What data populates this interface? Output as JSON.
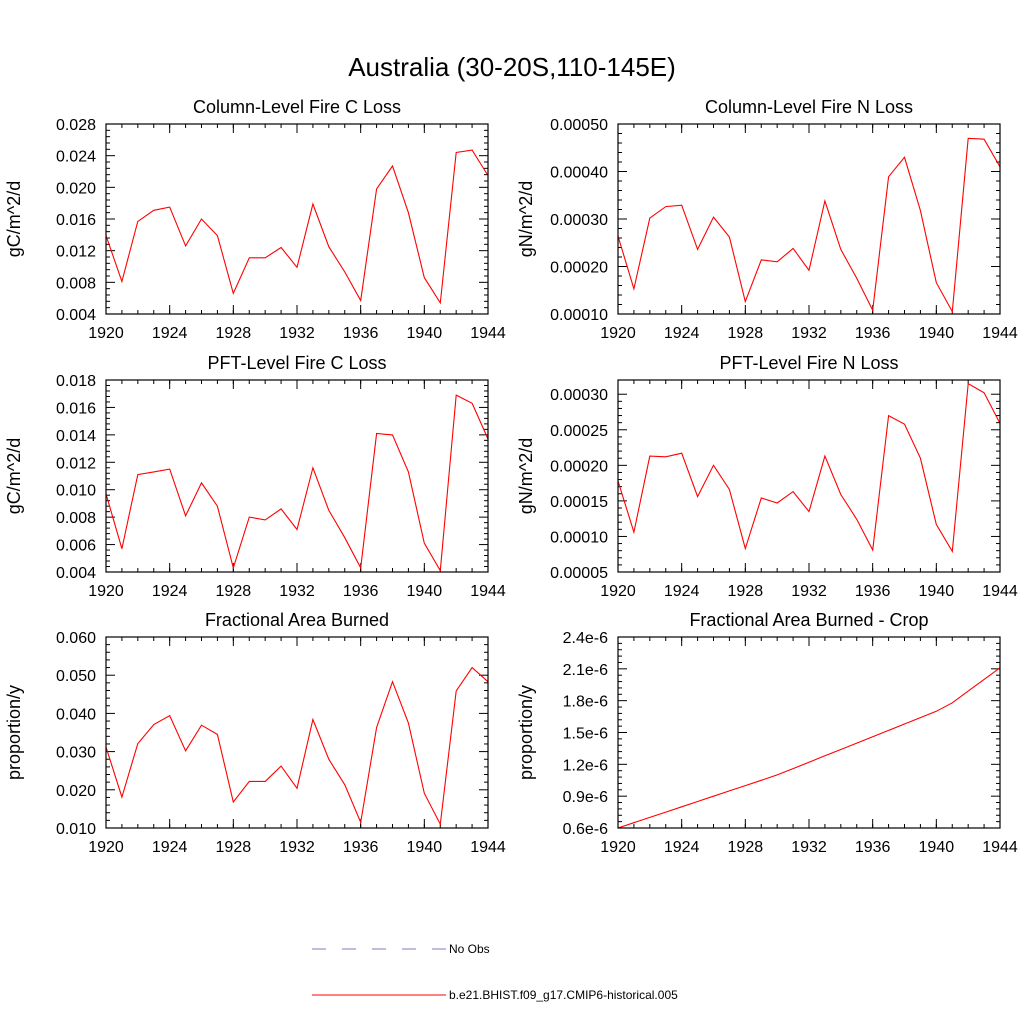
{
  "figure": {
    "title": "Australia (30-20S,110-145E)",
    "series_color": "#ff0000",
    "obs_color": "#7b7bbf"
  },
  "legend": {
    "entries": [
      {
        "label": "No Obs",
        "style": "dashed",
        "color": "#7b7bbf"
      },
      {
        "label": "b.e21.BHIST.f09_g17.CMIP6-historical.005",
        "style": "solid",
        "color": "#ff0000"
      }
    ]
  },
  "chart_data": [
    {
      "type": "line",
      "title": "Column-Level Fire C Loss",
      "ylabel": "gC/m^2/d",
      "xlabel": "",
      "xlim": [
        1920,
        1944
      ],
      "ylim": [
        0.004,
        0.028
      ],
      "xticks": [
        1920,
        1924,
        1928,
        1932,
        1936,
        1940,
        1944
      ],
      "yticks": [
        0.004,
        0.008,
        0.012,
        0.016,
        0.02,
        0.024,
        0.028
      ],
      "ytick_labels": [
        "0.004",
        "0.008",
        "0.012",
        "0.016",
        "0.020",
        "0.024",
        "0.028"
      ],
      "x": [
        1920,
        1921,
        1922,
        1923,
        1924,
        1925,
        1926,
        1927,
        1928,
        1929,
        1930,
        1931,
        1932,
        1933,
        1934,
        1935,
        1936,
        1937,
        1938,
        1939,
        1940,
        1941,
        1942,
        1943,
        1944
      ],
      "series": [
        {
          "values": [
            0.0139,
            0.0081,
            0.0157,
            0.0171,
            0.0175,
            0.0126,
            0.016,
            0.0139,
            0.0066,
            0.0111,
            0.0111,
            0.0124,
            0.0099,
            0.0179,
            0.0125,
            0.0093,
            0.0057,
            0.0198,
            0.0227,
            0.0168,
            0.0086,
            0.0054,
            0.0244,
            0.0247,
            0.0215
          ]
        }
      ]
    },
    {
      "type": "line",
      "title": "Column-Level Fire N Loss",
      "ylabel": "gN/m^2/d",
      "xlabel": "",
      "xlim": [
        1920,
        1944
      ],
      "ylim": [
        0.0001,
        0.0005
      ],
      "xticks": [
        1920,
        1924,
        1928,
        1932,
        1936,
        1940,
        1944
      ],
      "yticks": [
        0.0001,
        0.0002,
        0.0003,
        0.0004,
        0.0005
      ],
      "ytick_labels": [
        "0.00010",
        "0.00020",
        "0.00030",
        "0.00040",
        "0.00050"
      ],
      "x": [
        1920,
        1921,
        1922,
        1923,
        1924,
        1925,
        1926,
        1927,
        1928,
        1929,
        1930,
        1931,
        1932,
        1933,
        1934,
        1935,
        1936,
        1937,
        1938,
        1939,
        1940,
        1941,
        1942,
        1943,
        1944
      ],
      "series": [
        {
          "values": [
            0.000264,
            0.000153,
            0.000302,
            0.000326,
            0.000329,
            0.000236,
            0.000304,
            0.000262,
            0.000126,
            0.000214,
            0.00021,
            0.000238,
            0.000192,
            0.000338,
            0.000236,
            0.000175,
            0.000108,
            0.000389,
            0.00043,
            0.000318,
            0.000166,
            0.000105,
            0.00047,
            0.000468,
            0.00041
          ]
        }
      ]
    },
    {
      "type": "line",
      "title": "PFT-Level Fire C Loss",
      "ylabel": "gC/m^2/d",
      "xlabel": "",
      "xlim": [
        1920,
        1944
      ],
      "ylim": [
        0.004,
        0.018
      ],
      "xticks": [
        1920,
        1924,
        1928,
        1932,
        1936,
        1940,
        1944
      ],
      "yticks": [
        0.004,
        0.006,
        0.008,
        0.01,
        0.012,
        0.014,
        0.016,
        0.018
      ],
      "ytick_labels": [
        "0.004",
        "0.006",
        "0.008",
        "0.010",
        "0.012",
        "0.014",
        "0.016",
        "0.018"
      ],
      "x": [
        1920,
        1921,
        1922,
        1923,
        1924,
        1925,
        1926,
        1927,
        1928,
        1929,
        1930,
        1931,
        1932,
        1933,
        1934,
        1935,
        1936,
        1937,
        1938,
        1939,
        1940,
        1941,
        1942,
        1943,
        1944
      ],
      "series": [
        {
          "values": [
            0.0097,
            0.0057,
            0.0111,
            0.0113,
            0.0115,
            0.0081,
            0.0105,
            0.0088,
            0.0043,
            0.008,
            0.0078,
            0.0086,
            0.0071,
            0.0116,
            0.0085,
            0.0065,
            0.0043,
            0.0141,
            0.014,
            0.0113,
            0.0061,
            0.0041,
            0.0169,
            0.0163,
            0.0137
          ]
        }
      ]
    },
    {
      "type": "line",
      "title": "PFT-Level Fire N Loss",
      "ylabel": "gN/m^2/d",
      "xlabel": "",
      "xlim": [
        1920,
        1944
      ],
      "ylim": [
        5e-05,
        0.00032
      ],
      "xticks": [
        1920,
        1924,
        1928,
        1932,
        1936,
        1940,
        1944
      ],
      "yticks": [
        5e-05,
        0.0001,
        0.00015,
        0.0002,
        0.00025,
        0.0003
      ],
      "ytick_labels": [
        "0.00005",
        "0.00010",
        "0.00015",
        "0.00020",
        "0.00025",
        "0.00030"
      ],
      "x": [
        1920,
        1921,
        1922,
        1923,
        1924,
        1925,
        1926,
        1927,
        1928,
        1929,
        1930,
        1931,
        1932,
        1933,
        1934,
        1935,
        1936,
        1937,
        1938,
        1939,
        1940,
        1941,
        1942,
        1943,
        1944
      ],
      "series": [
        {
          "values": [
            0.000178,
            0.000106,
            0.000213,
            0.000212,
            0.000217,
            0.000156,
            0.0002,
            0.000166,
            8.3e-05,
            0.000154,
            0.000147,
            0.000163,
            0.000135,
            0.000213,
            0.000159,
            0.000124,
            8.1e-05,
            0.00027,
            0.000258,
            0.00021,
            0.000117,
            7.9e-05,
            0.000315,
            0.000302,
            0.000259
          ]
        }
      ]
    },
    {
      "type": "line",
      "title": "Fractional Area Burned",
      "ylabel": "proportion/y",
      "xlabel": "",
      "xlim": [
        1920,
        1944
      ],
      "ylim": [
        0.01,
        0.06
      ],
      "xticks": [
        1920,
        1924,
        1928,
        1932,
        1936,
        1940,
        1944
      ],
      "yticks": [
        0.01,
        0.02,
        0.03,
        0.04,
        0.05,
        0.06
      ],
      "ytick_labels": [
        "0.010",
        "0.020",
        "0.030",
        "0.040",
        "0.050",
        "0.060"
      ],
      "x": [
        1920,
        1921,
        1922,
        1923,
        1924,
        1925,
        1926,
        1927,
        1928,
        1929,
        1930,
        1931,
        1932,
        1933,
        1934,
        1935,
        1936,
        1937,
        1938,
        1939,
        1940,
        1941,
        1942,
        1943,
        1944
      ],
      "series": [
        {
          "values": [
            0.0312,
            0.0181,
            0.0321,
            0.0371,
            0.0394,
            0.0302,
            0.0369,
            0.0345,
            0.0168,
            0.0222,
            0.0222,
            0.0262,
            0.0204,
            0.0384,
            0.028,
            0.0213,
            0.0115,
            0.0363,
            0.0483,
            0.0375,
            0.0191,
            0.011,
            0.0459,
            0.052,
            0.0483
          ]
        }
      ]
    },
    {
      "type": "line",
      "title": "Fractional Area Burned - Crop",
      "ylabel": "proportion/y",
      "xlabel": "",
      "xlim": [
        1920,
        1944
      ],
      "ylim": [
        6e-07,
        2.4e-06
      ],
      "xticks": [
        1920,
        1924,
        1928,
        1932,
        1936,
        1940,
        1944
      ],
      "yticks": [
        6e-07,
        9e-07,
        1.2e-06,
        1.5e-06,
        1.8e-06,
        2.1e-06,
        2.4e-06
      ],
      "ytick_labels": [
        "0.6e-6",
        "0.9e-6",
        "1.2e-6",
        "1.5e-6",
        "1.8e-6",
        "2.1e-6",
        "2.4e-6"
      ],
      "x": [
        1920,
        1921,
        1922,
        1923,
        1924,
        1925,
        1926,
        1927,
        1928,
        1929,
        1930,
        1931,
        1932,
        1933,
        1934,
        1935,
        1936,
        1937,
        1938,
        1939,
        1940,
        1941,
        1942,
        1943,
        1944
      ],
      "series": [
        {
          "values": [
            6e-07,
            6.5e-07,
            7e-07,
            7.5e-07,
            8e-07,
            8.5e-07,
            9e-07,
            9.5e-07,
            1e-06,
            1.05e-06,
            1.1e-06,
            1.16e-06,
            1.22e-06,
            1.28e-06,
            1.34e-06,
            1.4e-06,
            1.46e-06,
            1.52e-06,
            1.58e-06,
            1.64e-06,
            1.7e-06,
            1.78e-06,
            1.89e-06,
            2e-06,
            2.11e-06
          ]
        }
      ]
    }
  ]
}
